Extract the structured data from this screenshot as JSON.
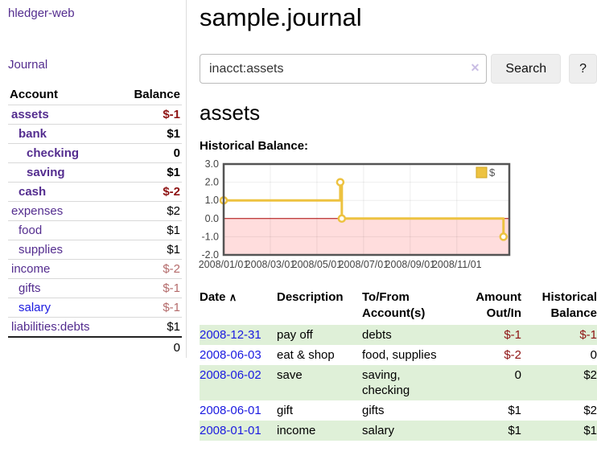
{
  "sidebar": {
    "brand": "hledger-web",
    "nav_journal": "Journal",
    "accounts_header": {
      "account": "Account",
      "balance": "Balance"
    },
    "accounts": [
      {
        "name": "assets",
        "balance": "$-1"
      },
      {
        "name": "bank",
        "balance": "$1"
      },
      {
        "name": "checking",
        "balance": "0"
      },
      {
        "name": "saving",
        "balance": "$1"
      },
      {
        "name": "cash",
        "balance": "$-2"
      },
      {
        "name": "expenses",
        "balance": "$2"
      },
      {
        "name": "food",
        "balance": "$1"
      },
      {
        "name": "supplies",
        "balance": "$1"
      },
      {
        "name": "income",
        "balance": "$-2"
      },
      {
        "name": "gifts",
        "balance": "$-1"
      },
      {
        "name": "salary",
        "balance": "$-1"
      },
      {
        "name": "liabilities:debts",
        "balance": "$1"
      }
    ],
    "total": "0"
  },
  "header": {
    "title": "sample.journal"
  },
  "search": {
    "query": "inacct:assets",
    "clear_icon": "✕",
    "search_label": "Search",
    "help_label": "?"
  },
  "account_page": {
    "title": "assets",
    "chart_label": "Historical Balance:"
  },
  "chart_data": {
    "type": "line",
    "title": "Historical Balance",
    "step": true,
    "series": [
      {
        "name": "$",
        "color": "#edc240",
        "points": [
          [
            "2008-01-01",
            1
          ],
          [
            "2008-06-01",
            2
          ],
          [
            "2008-06-03",
            0
          ],
          [
            "2008-12-31",
            -1
          ]
        ]
      }
    ],
    "y_ticks": [
      3.0,
      2.0,
      1.0,
      0.0,
      -1.0,
      -2.0
    ],
    "y_tick_labels": [
      "3.0",
      "2.0",
      "1.0",
      "0.0",
      "-1.0",
      "-2.0"
    ],
    "x_tick_months": [
      0,
      2,
      4,
      6,
      8,
      10
    ],
    "x_tick_labels": [
      "2008/01/01",
      "2008/03/01",
      "2008/05/01",
      "2008/07/01",
      "2008/09/01",
      "2008/11/01"
    ],
    "ylim": [
      -2,
      3
    ],
    "grid": true,
    "legend_position": "top-right",
    "negative_region_color": "#ffdddd",
    "zero_line_color": "#aa0000",
    "border_color": "#545454"
  },
  "register": {
    "columns": {
      "date": "Date",
      "sort_icon": "∧",
      "description": "Description",
      "accounts": "To/From Account(s)",
      "amount": "Amount Out/In",
      "balance": "Historical Balance"
    },
    "rows": [
      {
        "date": "2008-12-31",
        "description": "pay off",
        "accounts": "debts",
        "amount": "$-1",
        "balance": "$-1"
      },
      {
        "date": "2008-06-03",
        "description": "eat & shop",
        "accounts": "food, supplies",
        "amount": "$-2",
        "balance": "0"
      },
      {
        "date": "2008-06-02",
        "description": "save",
        "accounts": "saving, checking",
        "amount": "0",
        "balance": "$2"
      },
      {
        "date": "2008-06-01",
        "description": "gift",
        "accounts": "gifts",
        "amount": "$1",
        "balance": "$2"
      },
      {
        "date": "2008-01-01",
        "description": "income",
        "accounts": "salary",
        "amount": "$1",
        "balance": "$1"
      }
    ]
  },
  "colors": {
    "link_purple": "#542d8f",
    "link_blue": "#1b1ae0",
    "negative_strong": "#8e1313",
    "negative_soft": "#b46b6b",
    "row_stripe_green": "#dff0d8",
    "series_gold": "#edc240"
  }
}
